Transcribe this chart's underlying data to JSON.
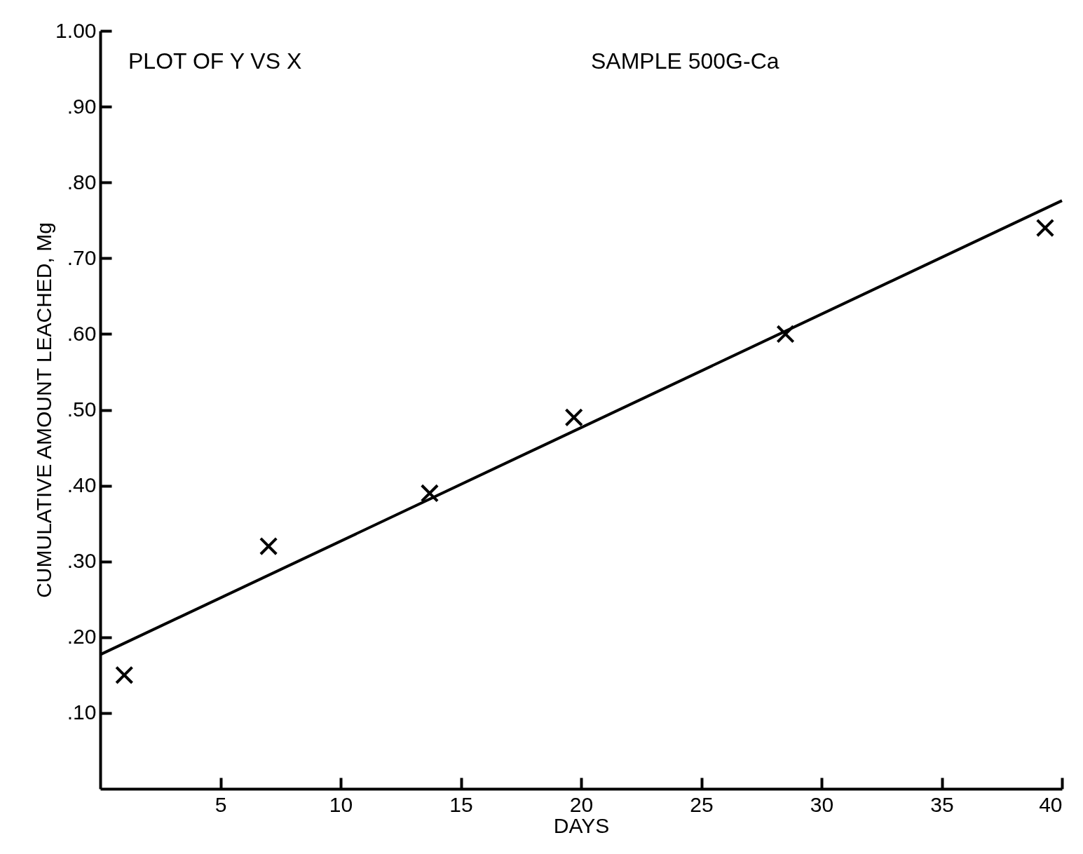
{
  "chart_data": {
    "type": "scatter",
    "xlabel": "DAYS",
    "ylabel": "CUMULATIVE AMOUNT LEACHED, Mg",
    "annotations": [
      "PLOT OF Y VS X",
      "SAMPLE 500G-Ca"
    ],
    "xlim": [
      0,
      40
    ],
    "xticks": [
      5,
      10,
      15,
      20,
      25,
      30,
      35,
      40
    ],
    "ylim": [
      0,
      1
    ],
    "yticks": [
      {
        "value": 0.1,
        "label": ".10"
      },
      {
        "value": 0.2,
        "label": ".20"
      },
      {
        "value": 0.3,
        "label": ".30"
      },
      {
        "value": 0.4,
        "label": ".40"
      },
      {
        "value": 0.5,
        "label": ".50"
      },
      {
        "value": 0.6,
        "label": ".60"
      },
      {
        "value": 0.7,
        "label": ".70"
      },
      {
        "value": 0.8,
        "label": ".80"
      },
      {
        "value": 0.9,
        "label": ".90"
      },
      {
        "value": 1,
        "label": "1.00"
      }
    ],
    "grid": false,
    "series": [
      {
        "color": "#000000",
        "marker": "cross",
        "x": [
          1,
          7,
          13.7,
          19.7,
          28.5,
          39.3
        ],
        "values": [
          0.15,
          0.32,
          0.39,
          0.49,
          0.6,
          0.74
        ]
      },
      {
        "type": "line",
        "color": "#000000",
        "line_style": "solid",
        "x": [
          0,
          40
        ],
        "values": [
          0.177,
          0.776
        ]
      }
    ]
  }
}
